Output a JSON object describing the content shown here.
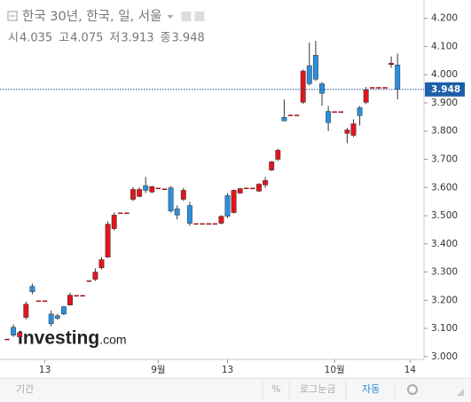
{
  "chart_data": {
    "type": "candlestick",
    "title": "한국 30년, 한국, 일, 서울",
    "ohlc_labels": [
      "시",
      "고",
      "저",
      "종"
    ],
    "categories": [
      null,
      null,
      null,
      null,
      null,
      null,
      "13",
      null,
      null,
      null,
      null,
      null,
      null,
      null,
      null,
      null,
      null,
      null,
      null,
      null,
      null,
      null,
      null,
      null,
      "9월",
      null,
      null,
      null,
      null,
      null,
      null,
      null,
      null,
      null,
      null,
      "13",
      null,
      null,
      null,
      null,
      null,
      null,
      null,
      null,
      null,
      null,
      null,
      null,
      null,
      null,
      null,
      null,
      "10월",
      null,
      null,
      null,
      null,
      null,
      null,
      null,
      null,
      null,
      null,
      null,
      "14"
    ],
    "open": [
      3.063,
      3.104,
      3.07,
      3.139,
      3.249,
      3.199,
      3.199,
      3.151,
      3.145,
      3.177,
      3.183,
      3.218,
      3.218,
      3.27,
      3.274,
      3.315,
      3.353,
      3.454,
      3.511,
      3.511,
      3.558,
      3.568,
      3.606,
      3.584,
      3.599,
      3.596,
      3.599,
      3.524,
      3.558,
      3.536,
      3.473,
      3.473,
      3.473,
      3.473,
      3.473,
      3.571,
      3.511,
      3.58,
      3.599,
      3.599,
      3.587,
      3.609,
      3.662,
      3.7,
      3.849,
      3.858,
      3.858,
      3.902,
      4.032,
      4.069,
      3.968,
      3.87,
      3.87,
      3.87,
      3.792,
      3.785,
      3.883,
      3.902,
      3.956,
      3.956,
      3.956,
      4.038,
      4.035,
      null,
      null
    ],
    "high": [
      3.063,
      3.114,
      3.09,
      3.195,
      3.259,
      3.199,
      3.199,
      3.164,
      3.152,
      3.18,
      3.227,
      3.218,
      3.218,
      3.27,
      3.313,
      3.353,
      3.48,
      3.511,
      3.511,
      3.511,
      3.602,
      3.6,
      3.637,
      3.606,
      3.599,
      3.596,
      3.605,
      3.536,
      3.599,
      3.549,
      3.473,
      3.473,
      3.473,
      3.473,
      3.501,
      3.58,
      3.593,
      3.599,
      3.599,
      3.599,
      3.615,
      3.637,
      3.694,
      3.738,
      3.912,
      3.858,
      3.858,
      4.019,
      4.114,
      4.12,
      3.974,
      3.889,
      3.87,
      3.87,
      3.811,
      3.842,
      3.889,
      3.956,
      3.956,
      3.956,
      3.956,
      4.065,
      4.075,
      null,
      null
    ],
    "low": [
      3.063,
      3.07,
      3.065,
      3.132,
      3.221,
      3.199,
      3.199,
      3.107,
      3.13,
      3.147,
      3.18,
      3.218,
      3.218,
      3.27,
      3.268,
      3.309,
      3.35,
      3.448,
      3.511,
      3.511,
      3.552,
      3.565,
      3.58,
      3.58,
      3.599,
      3.596,
      3.511,
      3.486,
      3.552,
      3.464,
      3.473,
      3.473,
      3.473,
      3.473,
      3.47,
      3.492,
      3.508,
      3.578,
      3.599,
      3.599,
      3.584,
      3.599,
      3.658,
      3.694,
      3.836,
      3.858,
      3.858,
      3.896,
      3.962,
      3.978,
      3.89,
      3.8,
      3.87,
      3.87,
      3.757,
      3.779,
      3.82,
      3.896,
      3.956,
      3.956,
      3.956,
      4.025,
      3.913,
      null,
      null
    ],
    "close": [
      3.063,
      3.076,
      3.085,
      3.186,
      3.23,
      3.199,
      3.199,
      3.117,
      3.136,
      3.151,
      3.218,
      3.218,
      3.218,
      3.27,
      3.3,
      3.344,
      3.47,
      3.502,
      3.511,
      3.511,
      3.593,
      3.593,
      3.59,
      3.603,
      3.599,
      3.596,
      3.517,
      3.502,
      3.59,
      3.473,
      3.473,
      3.473,
      3.473,
      3.473,
      3.498,
      3.498,
      3.59,
      3.596,
      3.599,
      3.599,
      3.612,
      3.625,
      3.691,
      3.732,
      3.836,
      3.858,
      3.858,
      4.013,
      3.968,
      3.984,
      3.934,
      3.83,
      3.87,
      3.87,
      3.804,
      3.826,
      3.855,
      3.946,
      3.956,
      3.956,
      3.956,
      4.041,
      3.948,
      null,
      null
    ],
    "up_color": "#e3141c",
    "down_color": "#2b90dc",
    "flat_color": "#9b1010",
    "ylim": [
      2.99,
      4.24
    ],
    "yticks": [
      {
        "value": 3,
        "label": "3.000"
      },
      {
        "value": 3.1,
        "label": "3.100"
      },
      {
        "value": 3.2,
        "label": "3.200"
      },
      {
        "value": 3.3,
        "label": "3.300"
      },
      {
        "value": 3.4,
        "label": "3.400"
      },
      {
        "value": 3.5,
        "label": "3.500"
      },
      {
        "value": 3.6,
        "label": "3.600"
      },
      {
        "value": 3.7,
        "label": "3.700"
      },
      {
        "value": 3.8,
        "label": "3.800"
      },
      {
        "value": 3.9,
        "label": "3.900"
      },
      {
        "value": 4,
        "label": "4.000"
      },
      {
        "value": 4.1,
        "label": "4.100"
      },
      {
        "value": 4.2,
        "label": "4.200"
      }
    ],
    "watermark": "Investing",
    "watermark_suffix": ".com",
    "toolbar": [
      "기간",
      "%",
      "로그눈금",
      "자동"
    ]
  }
}
